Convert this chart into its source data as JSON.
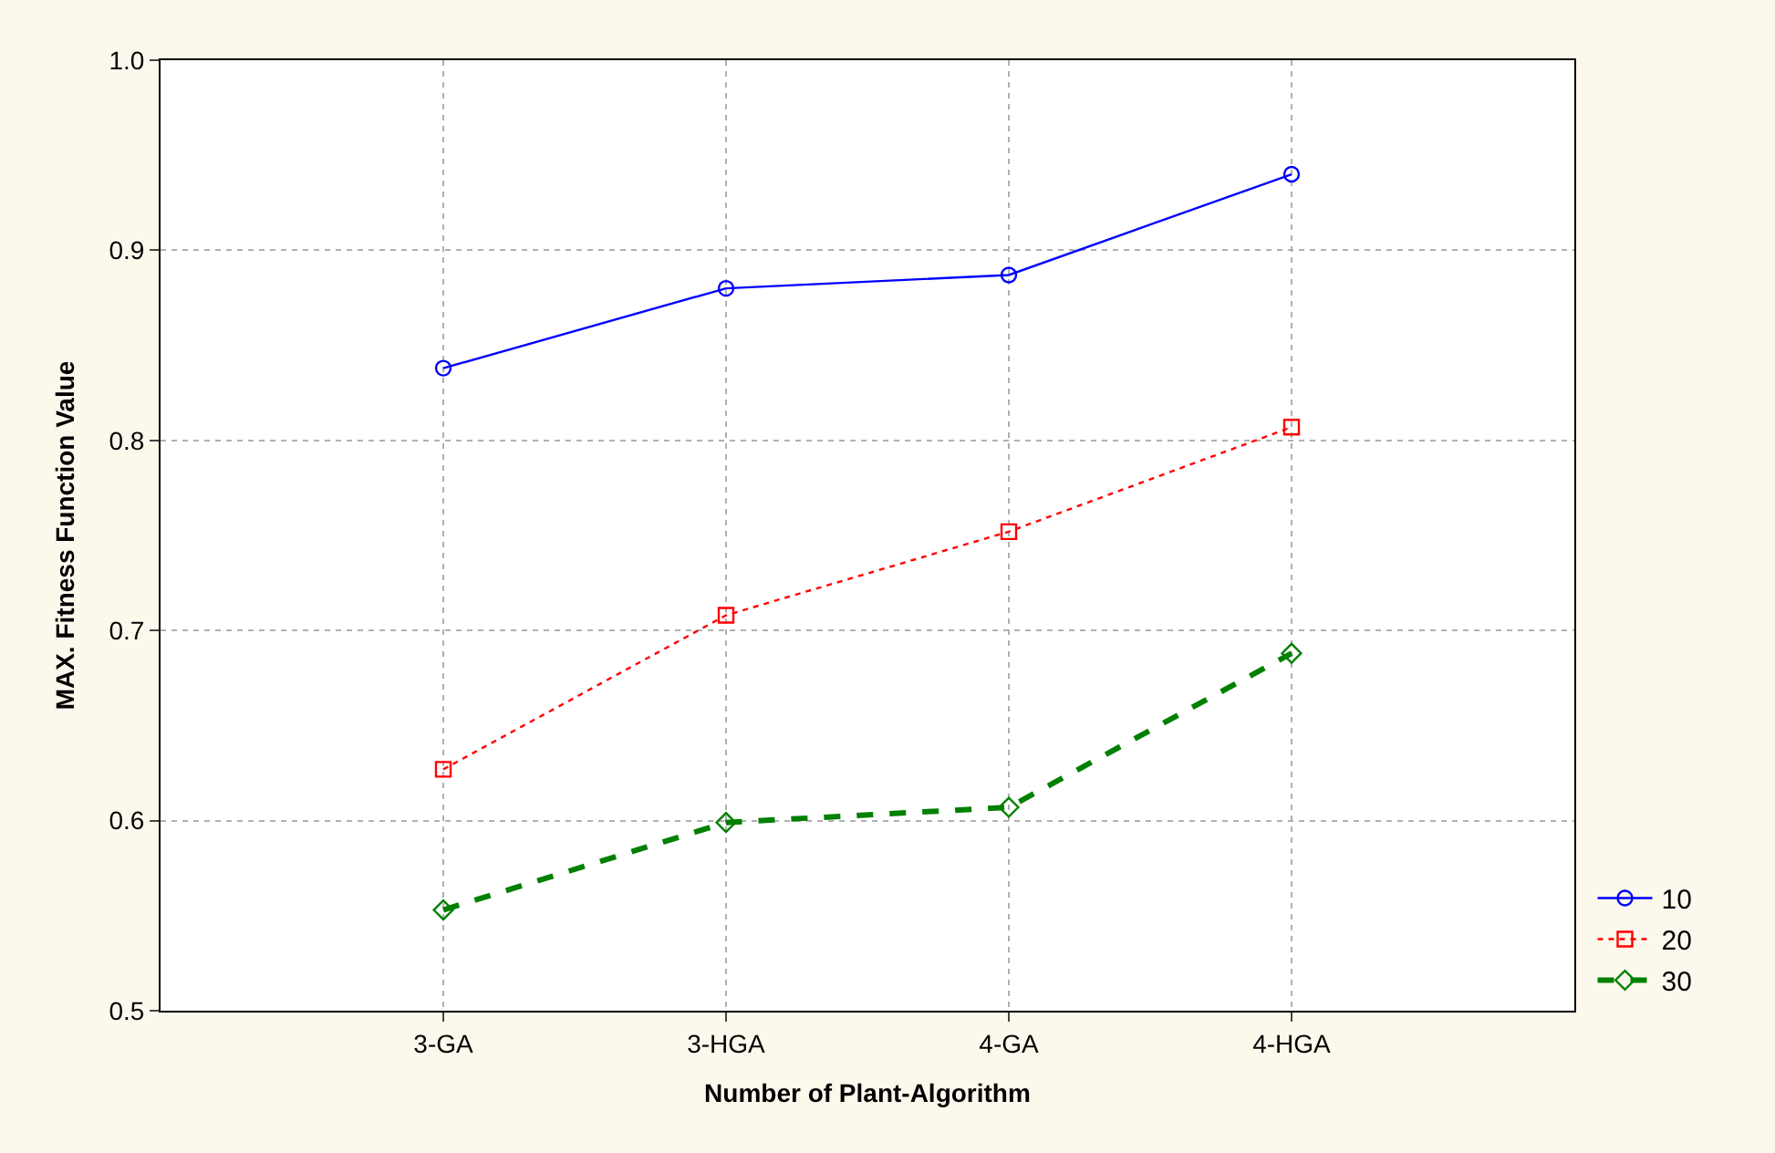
{
  "chart_data": {
    "type": "line",
    "xlabel": "Number of Plant-Algorithm",
    "ylabel": "MAX. Fitness Function Value",
    "categories": [
      "3-GA",
      "3-HGA",
      "4-GA",
      "4-HGA"
    ],
    "series": [
      {
        "name": "10",
        "color": "#0000ff",
        "values": [
          0.838,
          0.88,
          0.887,
          0.94
        ],
        "marker": "circle",
        "line_style": "solid"
      },
      {
        "name": "20",
        "color": "#ff0000",
        "values": [
          0.627,
          0.708,
          0.752,
          0.807
        ],
        "marker": "square",
        "line_style": "dotted"
      },
      {
        "name": "30",
        "color": "#008000",
        "values": [
          0.553,
          0.599,
          0.607,
          0.688
        ],
        "marker": "diamond",
        "line_style": "dashed"
      }
    ],
    "ylim": [
      0.5,
      1.0
    ],
    "yticks": [
      0.5,
      0.6,
      0.7,
      0.8,
      0.9,
      {
        "value": 1,
        "label": "1.0"
      }
    ],
    "grid": true,
    "legend": "right"
  }
}
